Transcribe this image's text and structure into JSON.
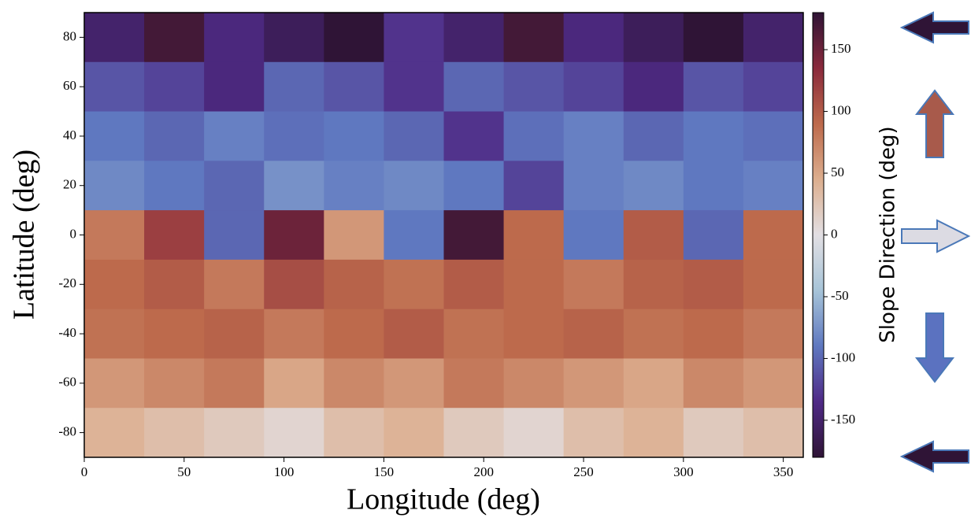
{
  "chart_data": {
    "type": "heatmap",
    "xlabel": "Longitude (deg)",
    "ylabel": "Latitude (deg)",
    "x": [
      15,
      45,
      75,
      105,
      135,
      165,
      195,
      225,
      255,
      285,
      315,
      345
    ],
    "y": [
      80,
      60,
      40,
      20,
      0,
      -20,
      -40,
      -60,
      -80
    ],
    "values": [
      [
        -150,
        170,
        -140,
        -160,
        180,
        -130,
        -150,
        170,
        -140,
        -160,
        180,
        -150
      ],
      [
        -110,
        -120,
        -140,
        -100,
        -110,
        -130,
        -100,
        -110,
        -120,
        -140,
        -110,
        -120
      ],
      [
        -90,
        -100,
        -85,
        -95,
        -90,
        -100,
        -130,
        -95,
        -85,
        -100,
        -90,
        -95
      ],
      [
        -80,
        -90,
        -100,
        -75,
        -85,
        -80,
        -90,
        -120,
        -85,
        -80,
        -90,
        -85
      ],
      [
        80,
        120,
        -100,
        150,
        60,
        -90,
        170,
        90,
        -90,
        100,
        -100,
        90
      ],
      [
        90,
        100,
        80,
        110,
        95,
        85,
        100,
        90,
        80,
        95,
        100,
        90
      ],
      [
        85,
        90,
        95,
        80,
        90,
        100,
        85,
        90,
        95,
        85,
        90,
        80
      ],
      [
        60,
        70,
        80,
        50,
        70,
        60,
        80,
        70,
        60,
        50,
        70,
        60
      ],
      [
        40,
        30,
        20,
        10,
        30,
        40,
        20,
        10,
        30,
        40,
        20,
        30
      ]
    ],
    "xlim": [
      0,
      360
    ],
    "xticks": [
      0,
      50,
      100,
      150,
      200,
      250,
      300,
      350
    ],
    "ylim": [
      -90,
      90
    ],
    "yticks": [
      -80,
      -60,
      -40,
      -20,
      0,
      20,
      40,
      60,
      80
    ],
    "colorbar": {
      "label": "Slope Direction (deg)",
      "clim": [
        -180,
        180
      ],
      "ticks": [
        -150,
        -100,
        -50,
        0,
        50,
        100,
        150
      ],
      "colormap": [
        "#2f1436",
        "#4f2a86",
        "#5f78c0",
        "#a7c4d8",
        "#e2dfe3",
        "#dcae8e",
        "#bd6a4c",
        "#8a2a3c",
        "#2f1436"
      ]
    }
  }
}
